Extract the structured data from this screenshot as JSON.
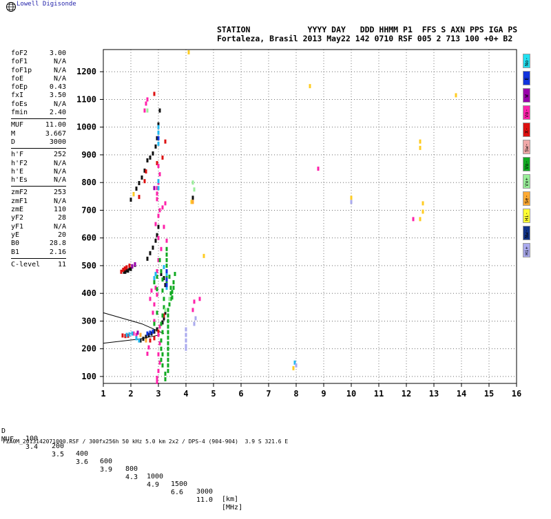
{
  "app": {
    "brand": "Lowell Digisonde"
  },
  "header": {
    "line1": "STATION            YYYY DAY   DDD HHMM P1  FFS S AXN PPS IGA PS",
    "line2": "Fortaleza, Brasil 2013 May22 142 0710 RSF 005 2 713 100 +0+ B2"
  },
  "params": [
    {
      "name": "foF2",
      "value": "3.00"
    },
    {
      "name": "foF1",
      "value": "N/A"
    },
    {
      "name": "foF1p",
      "value": "N/A"
    },
    {
      "name": "foE",
      "value": "N/A"
    },
    {
      "name": "foEp",
      "value": "0.43"
    },
    {
      "name": "fxI",
      "value": "3.50"
    },
    {
      "name": "foEs",
      "value": "N/A"
    },
    {
      "name": "fmin",
      "value": "2.40"
    },
    {
      "sep": true
    },
    {
      "name": "MUF",
      "value": "11.00"
    },
    {
      "name": "M",
      "value": "3.667"
    },
    {
      "name": "D",
      "value": "3000"
    },
    {
      "sep": true
    },
    {
      "name": "h'F",
      "value": "252"
    },
    {
      "name": "h'F2",
      "value": "N/A"
    },
    {
      "name": "h'E",
      "value": "N/A"
    },
    {
      "name": "h'Es",
      "value": "N/A"
    },
    {
      "sep": true
    },
    {
      "name": "zmF2",
      "value": "253"
    },
    {
      "name": "zmF1",
      "value": "N/A"
    },
    {
      "name": "zmE",
      "value": "110"
    },
    {
      "name": "yF2",
      "value": "28"
    },
    {
      "name": "yF1",
      "value": "N/A"
    },
    {
      "name": "yE",
      "value": "20"
    },
    {
      "name": "B0",
      "value": "28.8"
    },
    {
      "name": "B1",
      "value": "2.16"
    },
    {
      "sep": true
    },
    {
      "name": "C-level",
      "value": "11"
    }
  ],
  "bottom_table": {
    "d_label": "D",
    "d_values": [
      "100",
      "200",
      "400",
      "600",
      "800",
      "1000",
      "1500",
      "3000"
    ],
    "d_unit": "[km]",
    "muf_label": "MUF",
    "muf_values": [
      "3.4",
      "3.5",
      "3.6",
      "3.9",
      "4.3",
      "4.9",
      "6.6",
      "11.0"
    ],
    "muf_unit": "[MHz]"
  },
  "footer": "FZA0M_2013142071000.RSF / 300fx256h 50 kHz 5.0 km 2x2 / DPS-4 (904-904)  3.9 S 321.6 E",
  "side_buttons": [
    {
      "label": "No-",
      "color": "#22e0f0"
    },
    {
      "label": "E",
      "color": "#1133dd"
    },
    {
      "label": "W",
      "color": "#9900aa"
    },
    {
      "label": "Vo-",
      "color": "#ff22aa"
    },
    {
      "label": "X-",
      "color": "#dd1111"
    },
    {
      "label": "Sw-",
      "color": "#f0a8a8"
    },
    {
      "label": "Vo-",
      "color": "#11aa22"
    },
    {
      "label": "Vx+",
      "color": "#99ee99"
    },
    {
      "label": "Se-",
      "color": "#ffaa33"
    },
    {
      "label": "Hi-",
      "color": "#ffff33"
    },
    {
      "label": "Nw-",
      "color": "#113388"
    },
    {
      "label": "Hi+",
      "color": "#aaaaee"
    }
  ],
  "chart_data": {
    "type": "scatter",
    "xlabel": "",
    "ylabel": "",
    "xlim": [
      1,
      16
    ],
    "ylim": [
      75,
      1280
    ],
    "xticks": [
      "1",
      "2",
      "3",
      "4",
      "5",
      "6",
      "7",
      "8",
      "9",
      "10",
      "11",
      "12",
      "13",
      "14",
      "15",
      "16"
    ],
    "yticks": [
      "100",
      "200",
      "300",
      "400",
      "500",
      "600",
      "700",
      "800",
      "900",
      "1000",
      "1100",
      "1200"
    ],
    "grid": true,
    "series": [
      {
        "color": "#111111",
        "points": [
          [
            1.75,
            478
          ],
          [
            1.85,
            483
          ],
          [
            1.95,
            490
          ],
          [
            2.05,
            497
          ],
          [
            2.15,
            503
          ],
          [
            1.8,
            478
          ],
          [
            1.9,
            482
          ],
          [
            2.0,
            488
          ],
          [
            2.35,
            230
          ],
          [
            2.45,
            236
          ],
          [
            2.55,
            243
          ],
          [
            2.65,
            250
          ],
          [
            2.75,
            255
          ],
          [
            2.85,
            262
          ],
          [
            2.95,
            270
          ],
          [
            3.05,
            280
          ],
          [
            3.15,
            295
          ],
          [
            3.2,
            310
          ],
          [
            3.25,
            330
          ],
          [
            2.6,
            525
          ],
          [
            2.7,
            545
          ],
          [
            2.8,
            565
          ],
          [
            2.9,
            590
          ],
          [
            2.95,
            610
          ],
          [
            3.0,
            640
          ],
          [
            2.6,
            880
          ],
          [
            2.7,
            890
          ],
          [
            2.8,
            905
          ],
          [
            2.9,
            930
          ],
          [
            2.95,
            960
          ],
          [
            3.0,
            1010
          ],
          [
            3.05,
            1060
          ],
          [
            3.1,
            470
          ],
          [
            3.2,
            455
          ],
          [
            3.25,
            430
          ],
          [
            4.25,
            745
          ],
          [
            2.0,
            738
          ],
          [
            2.1,
            758
          ],
          [
            2.2,
            778
          ],
          [
            2.3,
            798
          ],
          [
            2.4,
            818
          ],
          [
            2.5,
            843
          ]
        ]
      },
      {
        "color": "#dd1111",
        "points": [
          [
            1.65,
            478
          ],
          [
            1.72,
            485
          ],
          [
            1.78,
            490
          ],
          [
            1.85,
            494
          ],
          [
            1.95,
            500
          ],
          [
            1.7,
            248
          ],
          [
            1.8,
            246
          ],
          [
            1.9,
            247
          ],
          [
            2.85,
            1120
          ],
          [
            2.95,
            870
          ],
          [
            3.15,
            890
          ],
          [
            3.25,
            948
          ],
          [
            2.7,
            230
          ],
          [
            2.85,
            238
          ],
          [
            3.0,
            262
          ],
          [
            3.1,
            290
          ],
          [
            3.2,
            320
          ],
          [
            2.3,
            748
          ],
          [
            2.5,
            805
          ],
          [
            2.55,
            840
          ]
        ]
      },
      {
        "color": "#ff22aa",
        "points": [
          [
            2.95,
            760
          ],
          [
            2.95,
            780
          ],
          [
            3.0,
            800
          ],
          [
            3.05,
            830
          ],
          [
            3.0,
            860
          ],
          [
            2.95,
            740
          ],
          [
            3.2,
            640
          ],
          [
            3.3,
            590
          ],
          [
            3.05,
            700
          ],
          [
            3.15,
            710
          ],
          [
            3.25,
            725
          ],
          [
            3.0,
            600
          ],
          [
            3.1,
            560
          ],
          [
            3.0,
            520
          ],
          [
            2.95,
            480
          ],
          [
            2.85,
            450
          ],
          [
            2.9,
            420
          ],
          [
            2.95,
            395
          ],
          [
            2.85,
            360
          ],
          [
            2.8,
            330
          ],
          [
            2.85,
            300
          ],
          [
            3.05,
            280
          ],
          [
            3.0,
            250
          ],
          [
            3.05,
            220
          ],
          [
            3.0,
            180
          ],
          [
            3.05,
            150
          ],
          [
            3.0,
            120
          ],
          [
            2.95,
            95
          ],
          [
            2.95,
            80
          ],
          [
            2.75,
            410
          ],
          [
            2.7,
            380
          ],
          [
            2.9,
            650
          ],
          [
            3.0,
            680
          ],
          [
            2.5,
            1060
          ],
          [
            2.55,
            1085
          ],
          [
            2.6,
            1100
          ],
          [
            2.2,
            250
          ],
          [
            2.1,
            255
          ],
          [
            2.65,
            205
          ],
          [
            2.6,
            182
          ],
          [
            4.3,
            370
          ],
          [
            4.25,
            340
          ],
          [
            4.5,
            380
          ],
          [
            8.8,
            850
          ],
          [
            12.25,
            668
          ]
        ]
      },
      {
        "color": "#11aa22",
        "points": [
          [
            3.35,
            120
          ],
          [
            3.35,
            140
          ],
          [
            3.35,
            160
          ],
          [
            3.35,
            180
          ],
          [
            3.35,
            200
          ],
          [
            3.35,
            220
          ],
          [
            3.35,
            240
          ],
          [
            3.35,
            260
          ],
          [
            3.35,
            280
          ],
          [
            3.35,
            300
          ],
          [
            3.35,
            320
          ],
          [
            3.35,
            340
          ],
          [
            3.4,
            360
          ],
          [
            3.45,
            380
          ],
          [
            3.45,
            400
          ],
          [
            3.45,
            420
          ],
          [
            3.3,
            440
          ],
          [
            3.3,
            460
          ],
          [
            3.3,
            480
          ],
          [
            3.3,
            500
          ],
          [
            3.3,
            520
          ],
          [
            3.3,
            540
          ],
          [
            3.3,
            560
          ],
          [
            3.25,
            90
          ],
          [
            3.25,
            110
          ],
          [
            3.15,
            140
          ],
          [
            3.1,
            160
          ],
          [
            3.15,
            180
          ],
          [
            3.1,
            200
          ],
          [
            3.1,
            230
          ],
          [
            3.15,
            260
          ],
          [
            3.1,
            290
          ],
          [
            3.15,
            320
          ],
          [
            3.2,
            350
          ],
          [
            3.2,
            380
          ],
          [
            3.15,
            410
          ],
          [
            3.15,
            450
          ],
          [
            3.1,
            480
          ],
          [
            3.05,
            520
          ],
          [
            3.5,
            405
          ],
          [
            3.5,
            385
          ],
          [
            3.55,
            420
          ],
          [
            3.55,
            440
          ],
          [
            3.4,
            460
          ],
          [
            2.95,
            330
          ],
          [
            2.85,
            290
          ],
          [
            2.95,
            415
          ],
          [
            2.85,
            440
          ],
          [
            2.95,
            460
          ],
          [
            3.6,
            470
          ]
        ]
      },
      {
        "color": "#22b8f0",
        "points": [
          [
            1.85,
            250
          ],
          [
            1.95,
            252
          ],
          [
            2.05,
            255
          ],
          [
            2.3,
            230
          ],
          [
            2.2,
            238
          ],
          [
            3.0,
            780
          ],
          [
            3.0,
            805
          ],
          [
            3.0,
            940
          ],
          [
            3.0,
            960
          ],
          [
            3.0,
            980
          ],
          [
            3.0,
            1000
          ],
          [
            3.3,
            420
          ],
          [
            3.3,
            470
          ],
          [
            3.2,
            495
          ],
          [
            7.95,
            150
          ],
          [
            2.85,
            455
          ],
          [
            2.9,
            470
          ]
        ]
      },
      {
        "color": "#1133dd",
        "points": [
          [
            2.6,
            255
          ],
          [
            2.7,
            258
          ],
          [
            2.8,
            262
          ],
          [
            3.0,
            960
          ],
          [
            3.3,
            430
          ],
          [
            3.3,
            450
          ],
          [
            3.3,
            480
          ]
        ]
      },
      {
        "color": "#9900aa",
        "points": [
          [
            2.05,
            498
          ],
          [
            2.15,
            505
          ],
          [
            2.25,
            258
          ],
          [
            2.85,
            780
          ]
        ]
      },
      {
        "color": "#ffcc22",
        "points": [
          [
            4.1,
            1270
          ],
          [
            8.5,
            1148
          ],
          [
            12.5,
            948
          ],
          [
            12.5,
            925
          ],
          [
            12.5,
            668
          ],
          [
            12.6,
            695
          ],
          [
            12.6,
            725
          ],
          [
            13.8,
            1115
          ],
          [
            10.0,
            745
          ],
          [
            4.65,
            535
          ],
          [
            7.9,
            130
          ],
          [
            2.1,
            758
          ],
          [
            4.2,
            730
          ]
        ]
      },
      {
        "color": "#99ee99",
        "points": [
          [
            2.6,
            1060
          ],
          [
            3.25,
            340
          ],
          [
            3.4,
            380
          ],
          [
            4.25,
            800
          ],
          [
            4.3,
            775
          ]
        ]
      },
      {
        "color": "#ffaa33",
        "points": [
          [
            2.55,
            230
          ],
          [
            2.35,
            250
          ],
          [
            4.25,
            730
          ]
        ]
      },
      {
        "color": "#aaaaee",
        "points": [
          [
            4.0,
            210
          ],
          [
            4.0,
            230
          ],
          [
            4.0,
            250
          ],
          [
            4.0,
            270
          ],
          [
            4.0,
            200
          ],
          [
            4.3,
            290
          ],
          [
            4.35,
            310
          ],
          [
            10.0,
            730
          ],
          [
            8.0,
            140
          ]
        ]
      }
    ],
    "lines": [
      {
        "points": [
          [
            1.0,
            330
          ],
          [
            2.4,
            290
          ],
          [
            3.2,
            255
          ]
        ]
      },
      {
        "points": [
          [
            1.0,
            220
          ],
          [
            2.3,
            235
          ],
          [
            3.05,
            250
          ]
        ]
      }
    ]
  }
}
